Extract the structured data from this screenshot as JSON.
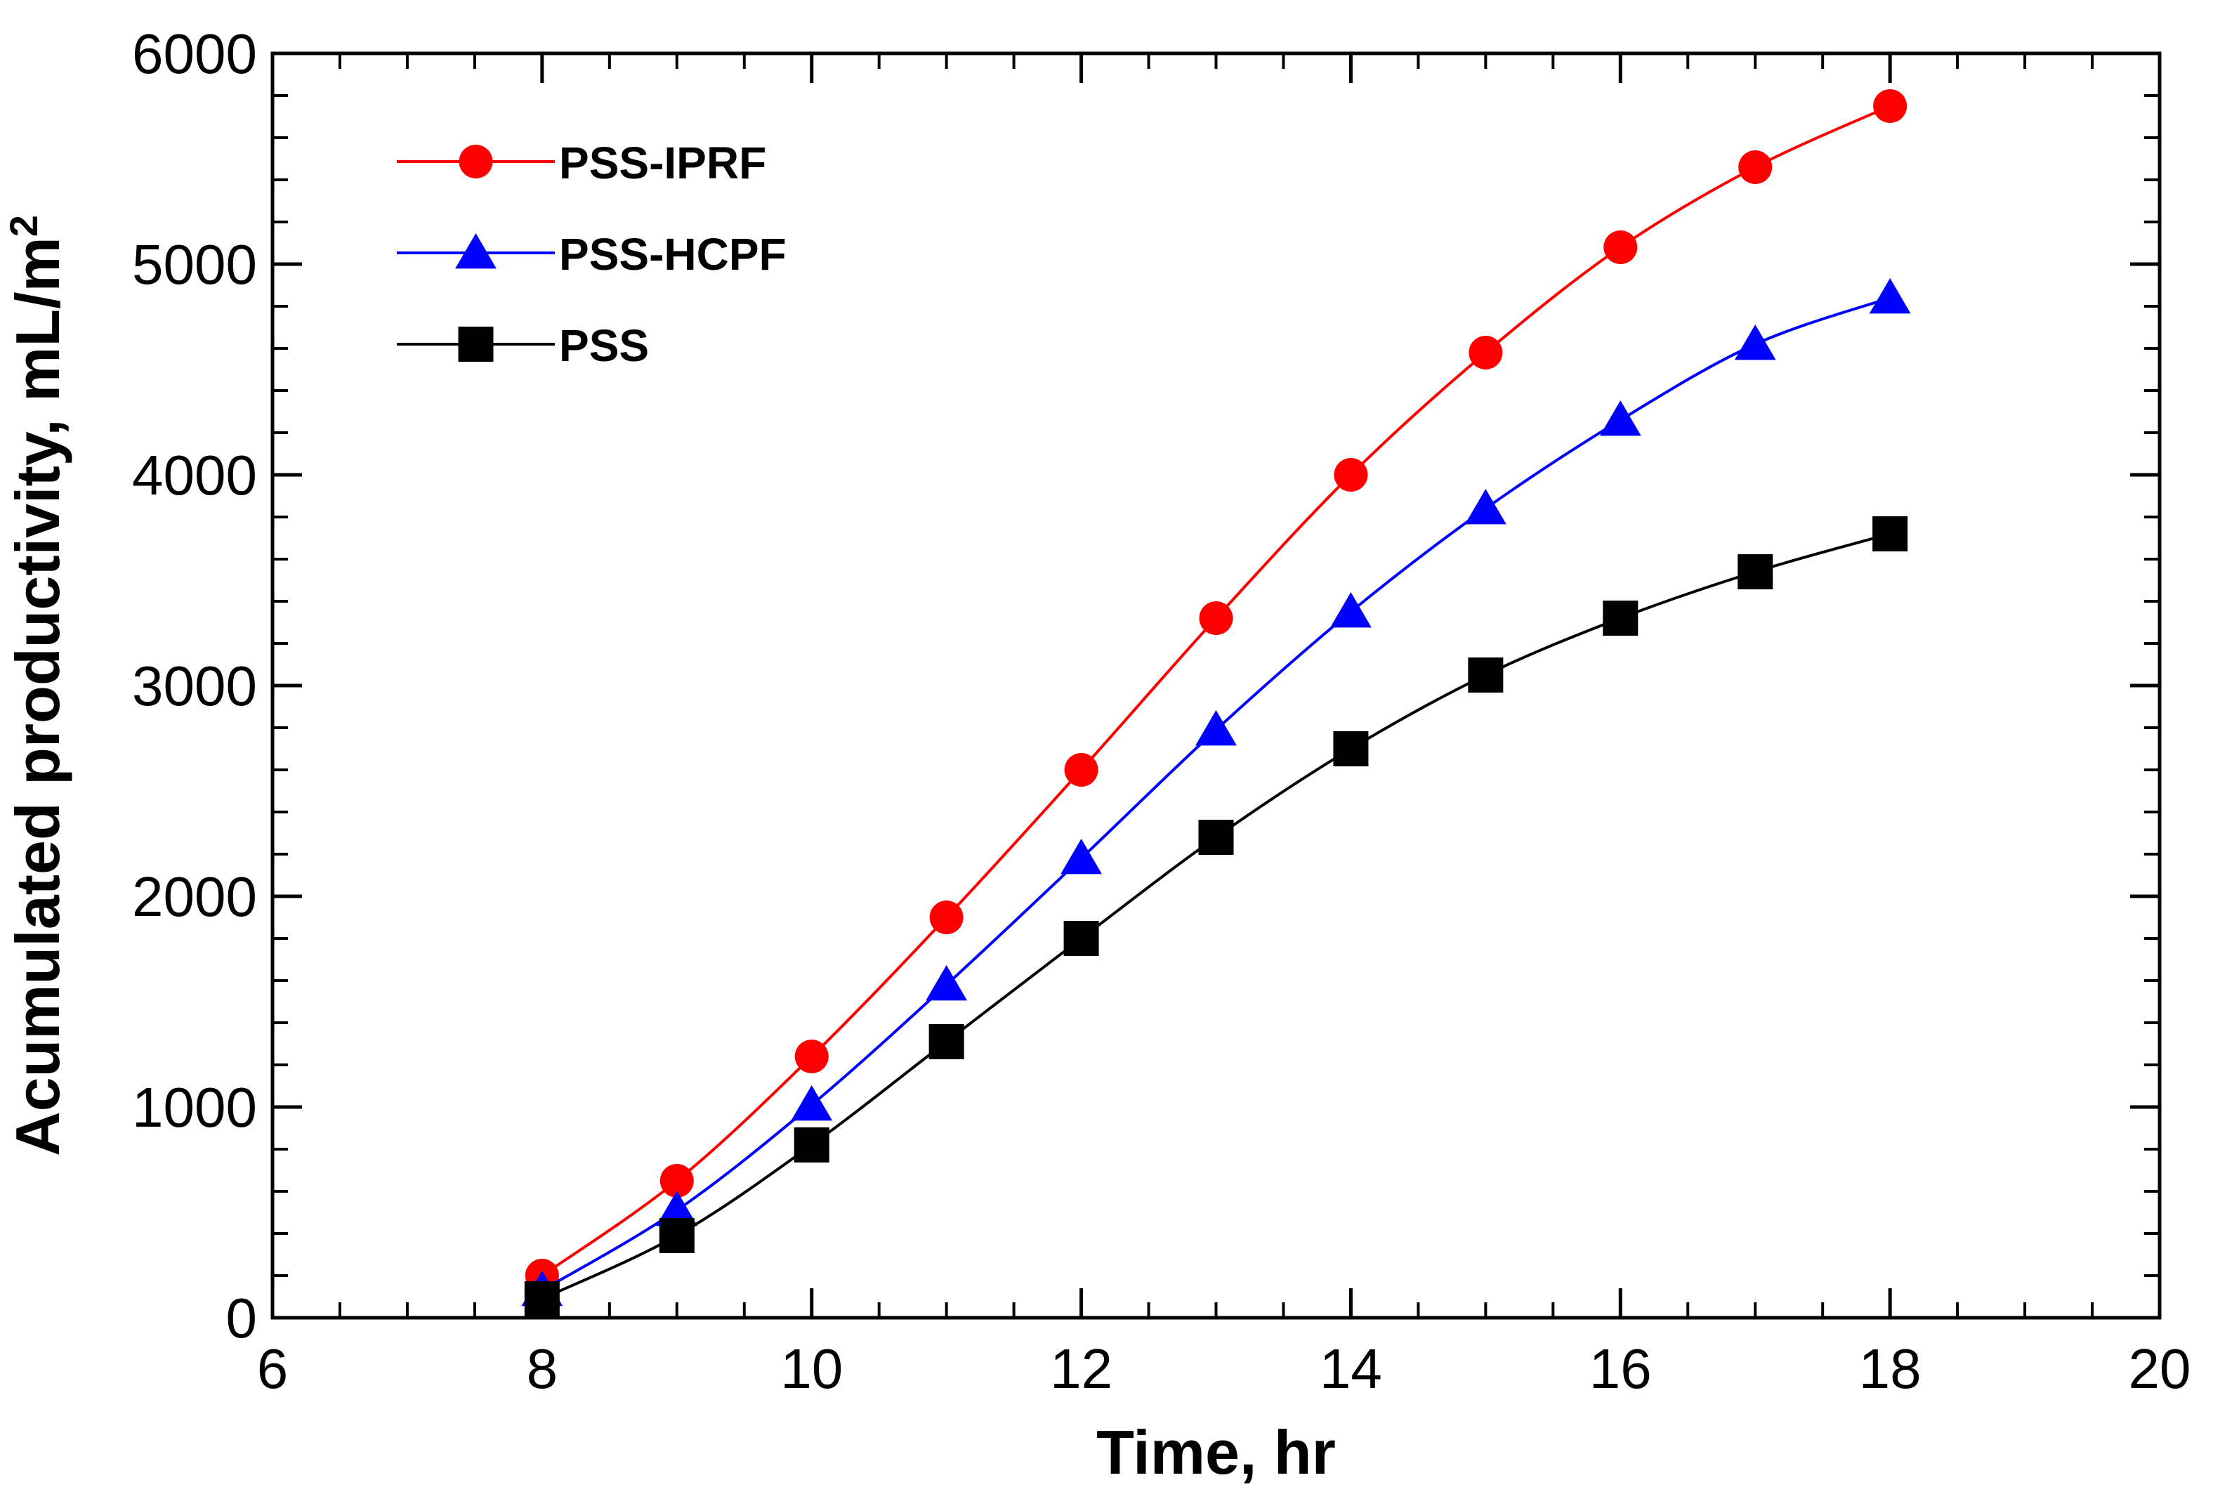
{
  "chart_data": {
    "type": "line",
    "title": "",
    "xlabel": "Time, hr",
    "ylabel": "Acumulated productivity, mL/m",
    "ylabel_superscript": "2",
    "xlim": [
      6,
      20
    ],
    "ylim": [
      0,
      6000
    ],
    "x_ticks": [
      6,
      8,
      10,
      12,
      14,
      16,
      18,
      20
    ],
    "y_ticks": [
      0,
      1000,
      2000,
      3000,
      4000,
      5000,
      6000
    ],
    "x_minor_step": 0.5,
    "y_minor_step": 200,
    "grid": false,
    "legend_position": "top-left",
    "x": [
      8,
      9,
      10,
      11,
      12,
      13,
      14,
      15,
      16,
      17,
      18
    ],
    "series": [
      {
        "name": "PSS-IPRF",
        "color": "#ff0000",
        "marker": "circle",
        "values": [
          200,
          650,
          1240,
          1900,
          2600,
          3320,
          4000,
          4580,
          5080,
          5460,
          5750
        ]
      },
      {
        "name": "PSS-HCPF",
        "color": "#0000ff",
        "marker": "triangle",
        "values": [
          130,
          510,
          1010,
          1580,
          2180,
          2790,
          3350,
          3840,
          4260,
          4620,
          4840
        ]
      },
      {
        "name": "PSS",
        "color": "#000000",
        "marker": "square",
        "values": [
          90,
          390,
          820,
          1310,
          1800,
          2280,
          2700,
          3050,
          3320,
          3540,
          3720
        ]
      }
    ]
  }
}
